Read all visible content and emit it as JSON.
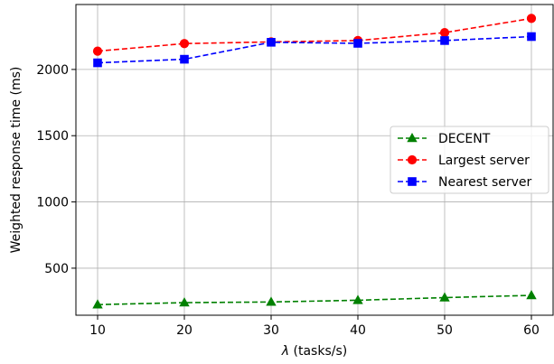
{
  "chart_data": {
    "type": "line",
    "xlabel_symbol": "λ",
    "xlabel_unit": " (tasks/s)",
    "ylabel": "Weighted response time (ms)",
    "x": [
      10,
      20,
      30,
      40,
      50,
      60
    ],
    "x_ticks": [
      "10",
      "20",
      "30",
      "40",
      "50",
      "60"
    ],
    "y_ticks": [
      "500",
      "1000",
      "1500",
      "2000"
    ],
    "y_tick_values": [
      500,
      1000,
      1500,
      2000
    ],
    "xlim": [
      7.5,
      62.5
    ],
    "ylim": [
      145,
      2490
    ],
    "grid": true,
    "legend_position": "center-right",
    "series": [
      {
        "name": "DECENT",
        "values": [
          225,
          240,
          245,
          258,
          278,
          295
        ],
        "color": "#008000",
        "marker": "triangle"
      },
      {
        "name": "Largest server",
        "values": [
          2138,
          2195,
          2208,
          2218,
          2278,
          2385
        ],
        "color": "#ff0000",
        "marker": "circle"
      },
      {
        "name": "Nearest server",
        "values": [
          2050,
          2077,
          2205,
          2197,
          2218,
          2248
        ],
        "color": "#0000ff",
        "marker": "square"
      }
    ]
  }
}
